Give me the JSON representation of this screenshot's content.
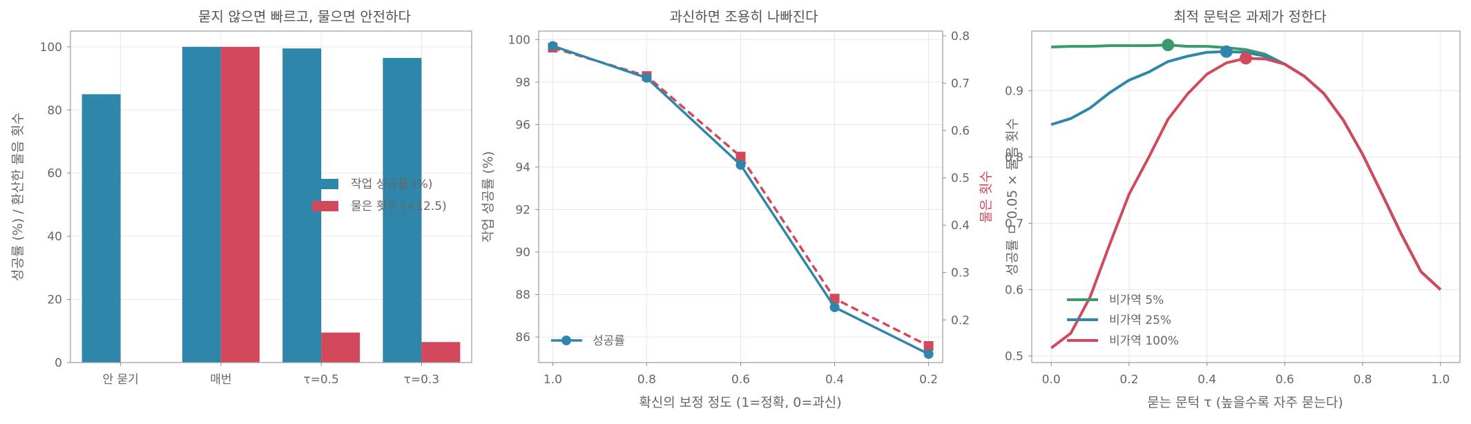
{
  "chart_data": [
    {
      "type": "bar",
      "title": "묻지 않으면 빠르고, 물으면 안전하다",
      "xlabel": "",
      "ylabel": "성공률 (%) / 환산한 물음 횟수",
      "categories": [
        "안 묻기",
        "매번",
        "τ=0.5",
        "τ=0.3"
      ],
      "series": [
        {
          "name": "작업 성공률 (%)",
          "values": [
            85,
            100,
            99.5,
            96.5
          ],
          "color": "#2e86ab"
        },
        {
          "name": "물은 횟수 (×12.5)",
          "values": [
            0,
            100,
            9.5,
            6.5
          ],
          "color": "#d1495b"
        }
      ],
      "ylim": [
        0,
        105
      ],
      "yticks": [
        "0",
        "20",
        "40",
        "60",
        "80",
        "100"
      ],
      "grid": true,
      "legend_position": "center-right"
    },
    {
      "type": "line",
      "title": "과신하면 조용히 나빠진다",
      "xlabel": "확신의 보정 정도 (1=정확, 0=과신)",
      "ylabel": "작업 성공률 (%)",
      "ylabel_right": "물은 횟수",
      "x": [
        1.0,
        0.8,
        0.6,
        0.4,
        0.2
      ],
      "xticks": [
        "1.0",
        "0.8",
        "0.6",
        "0.4",
        "0.2"
      ],
      "xlim": [
        1.03,
        0.17
      ],
      "series": [
        {
          "name": "성공률",
          "axis": "left",
          "values": [
            99.7,
            98.2,
            94.1,
            87.4,
            85.2
          ],
          "color": "#2e86ab"
        },
        {
          "name": "",
          "axis": "right",
          "values": [
            0.775,
            0.715,
            0.545,
            0.245,
            0.145
          ],
          "color": "#d1495b",
          "dashed": true
        }
      ],
      "ylim": [
        84.8,
        100.4
      ],
      "yticks": [
        "86",
        "88",
        "90",
        "92",
        "94",
        "96",
        "98",
        "100"
      ],
      "ylim_right": [
        0.11,
        0.81
      ],
      "yticks_right": [
        "0.2",
        "0.3",
        "0.4",
        "0.5",
        "0.6",
        "0.7",
        "0.8"
      ],
      "grid": true,
      "legend_position": "lower-left"
    },
    {
      "type": "line",
      "title": "최적 문턱은 과제가 정한다",
      "xlabel": "묻는 문턱 τ (높을수록 자주 묻는다)",
      "ylabel": "성공률 ㅁ 0.05 × 물음 횟수",
      "x": [
        0.0,
        0.05,
        0.1,
        0.15,
        0.2,
        0.25,
        0.3,
        0.35,
        0.4,
        0.45,
        0.5,
        0.55,
        0.6,
        0.65,
        0.7,
        0.75,
        0.8,
        0.85,
        0.9,
        0.95,
        1.0
      ],
      "xticks": [
        "0.0",
        "0.2",
        "0.4",
        "0.6",
        "0.8",
        "1.0"
      ],
      "xlim": [
        -0.05,
        1.05
      ],
      "series": [
        {
          "name": "비가역 5%",
          "color": "#3a9a6a",
          "optimum": 0.3,
          "values": [
            0.966,
            0.967,
            0.967,
            0.968,
            0.968,
            0.968,
            0.969,
            0.967,
            0.967,
            0.965,
            0.962,
            0.955,
            0.94,
            0.922,
            0.896,
            0.856,
            0.804,
            0.744,
            0.683,
            0.627,
            0.6
          ]
        },
        {
          "name": "비가역 25%",
          "color": "#2e86ab",
          "optimum": 0.45,
          "values": [
            0.849,
            0.858,
            0.874,
            0.897,
            0.916,
            0.928,
            0.944,
            0.952,
            0.958,
            0.959,
            0.958,
            0.952,
            0.94,
            0.922,
            0.896,
            0.856,
            0.804,
            0.744,
            0.683,
            0.627,
            0.6
          ]
        },
        {
          "name": "비가역 100%",
          "color": "#d1495b",
          "optimum": 0.5,
          "values": [
            0.512,
            0.534,
            0.589,
            0.668,
            0.744,
            0.799,
            0.857,
            0.895,
            0.925,
            0.942,
            0.949,
            0.948,
            0.94,
            0.922,
            0.896,
            0.856,
            0.804,
            0.744,
            0.683,
            0.627,
            0.6
          ]
        }
      ],
      "ylim": [
        0.49,
        0.99
      ],
      "yticks": [
        "0.5",
        "0.6",
        "0.7",
        "0.8",
        "0.9"
      ],
      "grid": true,
      "legend_position": "lower-left"
    }
  ]
}
